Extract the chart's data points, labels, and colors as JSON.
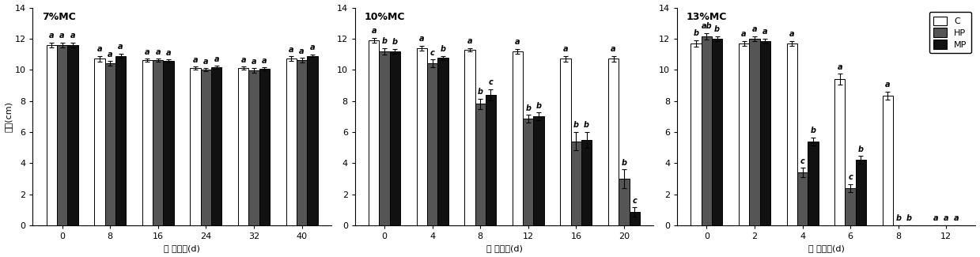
{
  "panels": [
    {
      "title": "7%MC",
      "xlabel": "劣 变时间(d)",
      "ylabel": "苗长(cm)",
      "xticks": [
        0,
        8,
        16,
        24,
        32,
        40
      ],
      "ylim": [
        0,
        14
      ],
      "yticks": [
        0,
        2,
        4,
        6,
        8,
        10,
        12,
        14
      ],
      "C": [
        11.6,
        10.7,
        10.6,
        10.1,
        10.1,
        10.7
      ],
      "HP": [
        11.6,
        10.4,
        10.6,
        10.0,
        9.95,
        10.6
      ],
      "MP": [
        11.6,
        10.9,
        10.55,
        10.15,
        10.05,
        10.9
      ],
      "C_err": [
        0.15,
        0.2,
        0.1,
        0.1,
        0.1,
        0.15
      ],
      "HP_err": [
        0.15,
        0.15,
        0.1,
        0.1,
        0.15,
        0.15
      ],
      "MP_err": [
        0.15,
        0.15,
        0.1,
        0.1,
        0.1,
        0.1
      ],
      "C_labels": [
        "a",
        "a",
        "a",
        "a",
        "a",
        "a"
      ],
      "HP_labels": [
        "a",
        "a",
        "a",
        "a",
        "a",
        "a"
      ],
      "MP_labels": [
        "a",
        "a",
        "a",
        "a",
        "a",
        "a"
      ]
    },
    {
      "title": "10%MC",
      "xlabel": "劣 变时间(d)",
      "ylabel": "",
      "xticks": [
        0,
        4,
        8,
        12,
        16,
        20
      ],
      "ylim": [
        0,
        14
      ],
      "yticks": [
        0,
        2,
        4,
        6,
        8,
        10,
        12,
        14
      ],
      "C": [
        11.9,
        11.4,
        11.3,
        11.2,
        10.7,
        10.7
      ],
      "HP": [
        11.2,
        10.4,
        7.8,
        6.85,
        5.4,
        3.0
      ],
      "MP": [
        11.2,
        10.75,
        8.4,
        7.0,
        5.5,
        0.85
      ],
      "C_err": [
        0.15,
        0.15,
        0.1,
        0.15,
        0.2,
        0.2
      ],
      "HP_err": [
        0.2,
        0.25,
        0.35,
        0.25,
        0.6,
        0.6
      ],
      "MP_err": [
        0.15,
        0.15,
        0.35,
        0.25,
        0.5,
        0.3
      ],
      "C_labels": [
        "a",
        "a",
        "a",
        "a",
        "a",
        "a"
      ],
      "HP_labels": [
        "b",
        "c",
        "b",
        "b",
        "b",
        "b"
      ],
      "MP_labels": [
        "b",
        "b",
        "c",
        "b",
        "b",
        "c"
      ]
    },
    {
      "title": "13%MC",
      "xlabel": "劣 变时间(d)",
      "ylabel": "",
      "xticks": [
        0,
        2,
        4,
        6,
        8,
        12
      ],
      "ylim": [
        0,
        14
      ],
      "yticks": [
        0,
        2,
        4,
        6,
        8,
        10,
        12,
        14
      ],
      "C": [
        11.7,
        11.7,
        11.7,
        9.4,
        8.35,
        0.0
      ],
      "HP": [
        12.15,
        12.0,
        3.4,
        2.4,
        0.0,
        0.0
      ],
      "MP": [
        12.0,
        11.85,
        5.4,
        4.2,
        0.0,
        0.0
      ],
      "C_err": [
        0.2,
        0.15,
        0.15,
        0.35,
        0.25,
        0.0
      ],
      "HP_err": [
        0.2,
        0.15,
        0.3,
        0.25,
        0.0,
        0.0
      ],
      "MP_err": [
        0.15,
        0.15,
        0.25,
        0.25,
        0.0,
        0.0
      ],
      "C_labels": [
        "b",
        "a",
        "a",
        "a",
        "a",
        "a"
      ],
      "HP_labels": [
        "ab",
        "a",
        "c",
        "c",
        "b",
        "a"
      ],
      "MP_labels": [
        "b",
        "a",
        "b",
        "b",
        "b",
        "a"
      ]
    }
  ],
  "bar_colors": {
    "C": "#ffffff",
    "HP": "#555555",
    "MP": "#111111"
  },
  "bar_edgecolor": "#000000",
  "bar_width": 0.22,
  "legend_labels": [
    "C",
    "HP",
    "MP"
  ],
  "legend_colors": [
    "#ffffff",
    "#555555",
    "#111111"
  ],
  "label_fontsize": 8,
  "tick_fontsize": 8,
  "title_fontsize": 9,
  "annot_fontsize": 7
}
